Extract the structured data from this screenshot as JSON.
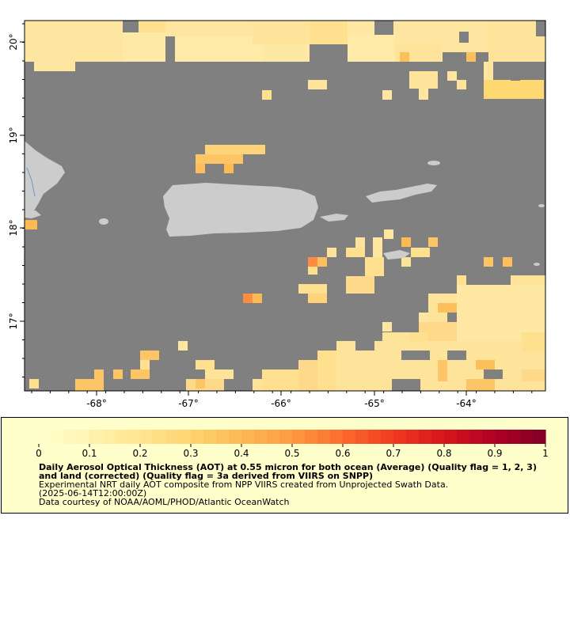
{
  "map": {
    "x_ticks": [
      "-68°",
      "-67°",
      "-66°",
      "-65°",
      "-64°"
    ],
    "y_ticks": [
      "20°",
      "19°",
      "18°",
      "17°"
    ],
    "lon_range": [
      -68.75,
      -63.15
    ],
    "lat_range": [
      16.3,
      20.25
    ],
    "colors": {
      "no_data": "#808080",
      "land": "#cccccc",
      "water_line": "#6699cc"
    }
  },
  "legend": {
    "tick_labels": [
      "0",
      "0.1",
      "0.2",
      "0.3",
      "0.4",
      "0.5",
      "0.6",
      "0.7",
      "0.8",
      "0.9",
      "1"
    ],
    "title": "Daily Aerosol Optical Thickness (AOT) at 0.55 micron for both ocean (Average) (Quality flag = 1, 2, 3) and land (corrected) (Quality flag = 3a derived from VIIRS on SNPP)",
    "subtitle": "Experimental NRT daily AOT composite from NPP VIIRS created from Unprojected Swath Data.",
    "date": "(2025-06-14T12:00:00Z)",
    "credit": "Data courtesy of NOAA/AOML/PHOD/Atlantic OceanWatch",
    "colorscale": [
      "#ffffcc",
      "#fff3b0",
      "#ffe590",
      "#fed470",
      "#fdb954",
      "#fd9a40",
      "#fc6b2e",
      "#f03a20",
      "#d7141c",
      "#b00026",
      "#800026"
    ]
  }
}
